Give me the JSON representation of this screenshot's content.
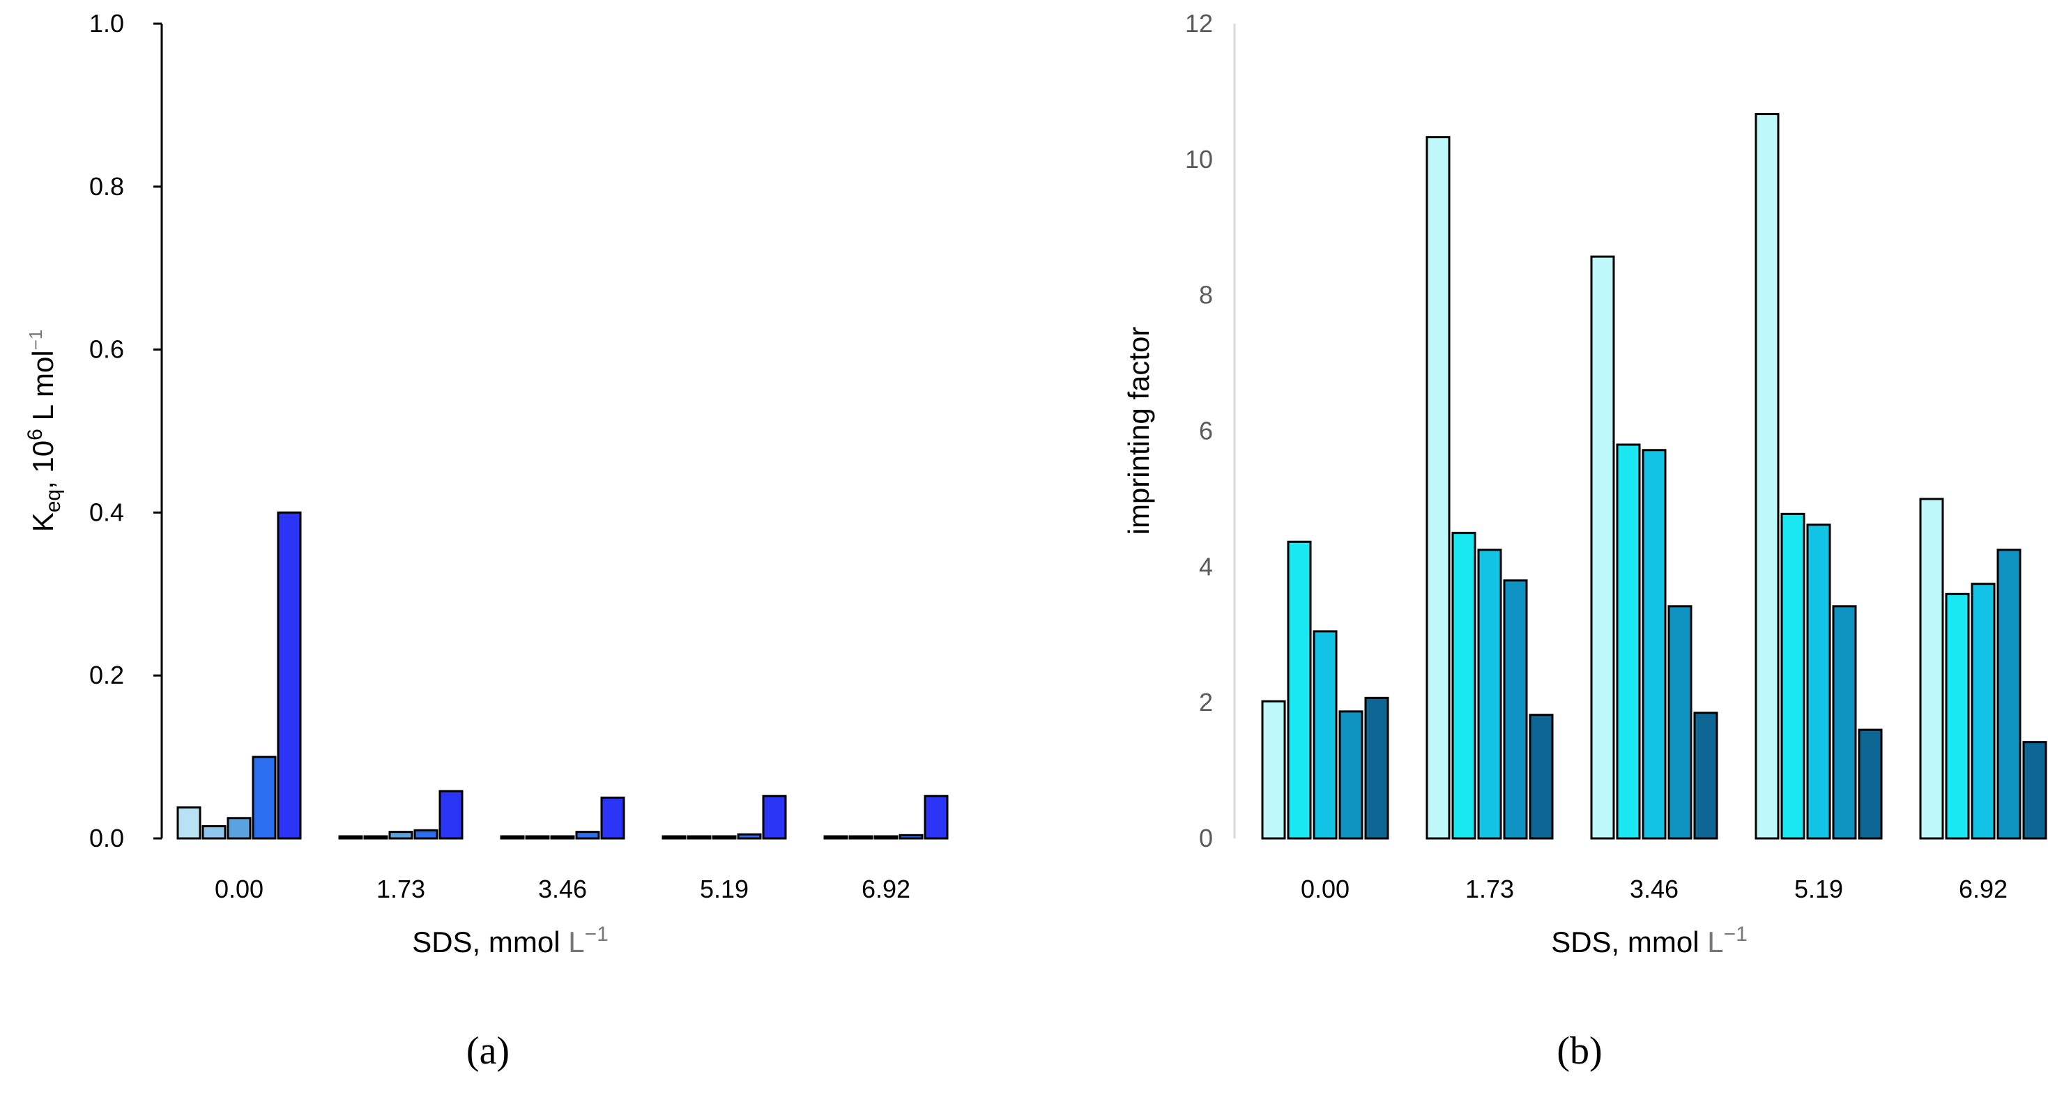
{
  "chart_data": [
    {
      "type": "bar",
      "panel": "(a)",
      "categories": [
        "0.00",
        "1.73",
        "3.46",
        "5.19",
        "6.92"
      ],
      "series": [
        {
          "color": "#b8e2f4",
          "values": [
            0.038,
            0.002,
            0.002,
            0.002,
            0.002
          ]
        },
        {
          "color": "#8fc6ee",
          "values": [
            0.015,
            0.002,
            0.002,
            0.002,
            0.002
          ]
        },
        {
          "color": "#5aa3e0",
          "values": [
            0.025,
            0.008,
            0.002,
            0.002,
            0.002
          ]
        },
        {
          "color": "#2c6ef0",
          "values": [
            0.1,
            0.01,
            0.008,
            0.005,
            0.004
          ]
        },
        {
          "color": "#2a35f5",
          "values": [
            0.4,
            0.058,
            0.05,
            0.052,
            0.052
          ]
        }
      ],
      "ylim": [
        0,
        1.0
      ],
      "yticks": [
        "0.0",
        "0.2",
        "0.4",
        "0.6",
        "0.8",
        "1.0"
      ],
      "ylabel": {
        "main": "K",
        "sub": "eq",
        "mid": ", 10",
        "sup": "6",
        "end": " L mol",
        "sup2": "−1"
      },
      "xlabel": {
        "main": "SDS, mmol ",
        "unit": "L",
        "sup": "−1"
      }
    },
    {
      "type": "bar",
      "panel": "(b)",
      "categories": [
        "0.00",
        "1.73",
        "3.46",
        "5.19",
        "6.92"
      ],
      "series": [
        {
          "color": "#bff8fa",
          "values": [
            2.02,
            10.33,
            8.57,
            10.67,
            5.0
          ]
        },
        {
          "color": "#19e7f2",
          "values": [
            4.37,
            4.5,
            5.8,
            4.78,
            3.6
          ]
        },
        {
          "color": "#12c3e6",
          "values": [
            3.05,
            4.25,
            5.72,
            4.62,
            3.75
          ]
        },
        {
          "color": "#0f93c2",
          "values": [
            1.87,
            3.8,
            3.42,
            3.42,
            4.25
          ]
        },
        {
          "color": "#0e6695",
          "values": [
            2.07,
            1.82,
            1.85,
            1.6,
            1.42
          ]
        }
      ],
      "ylim": [
        0,
        12
      ],
      "yticks": [
        "0",
        "2",
        "4",
        "6",
        "8",
        "10",
        "12"
      ],
      "ylabel": "imprinting factor",
      "xlabel": {
        "main": "SDS, mmol ",
        "unit": "L",
        "sup": "−1"
      }
    }
  ]
}
